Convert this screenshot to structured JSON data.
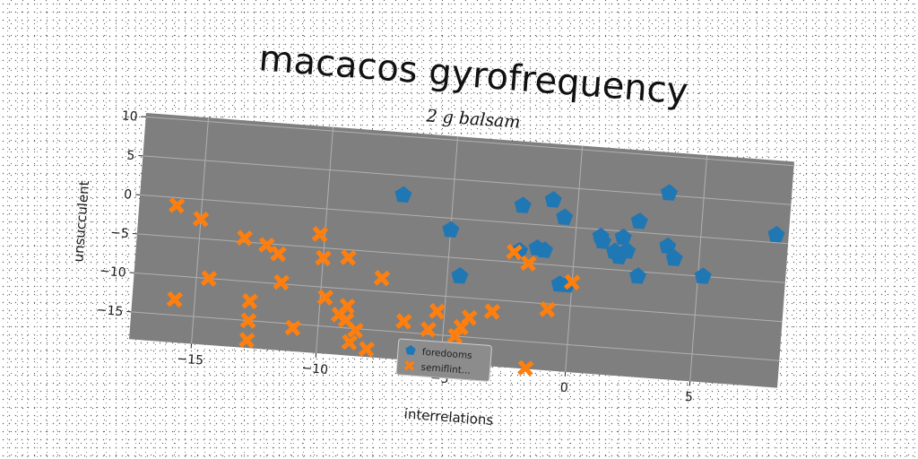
{
  "chart_data": {
    "type": "scatter",
    "title": "macacos gyrofrequency",
    "subtitle": "2 g balsam",
    "xlabel": "interrelations",
    "ylabel": "unsucculent",
    "xlim": [
      -17.5,
      8.5
    ],
    "ylim": [
      -18.5,
      10.5
    ],
    "xticks": [
      -15,
      -10,
      -5,
      0,
      5
    ],
    "xtick_labels": [
      "−15",
      "−10",
      "−5",
      "0",
      "5"
    ],
    "yticks": [
      10,
      5,
      0,
      -5,
      -10,
      -15
    ],
    "ytick_labels": [
      "10",
      "5",
      "0",
      "−5",
      "−10",
      "−15"
    ],
    "grid": true,
    "background_color": "#7f7f7f",
    "legend_position": "lower-center",
    "series": [
      {
        "name": "foredooms",
        "marker": "pentagon",
        "color": "#1f77b4",
        "points": [
          [
            -7.0,
            2.5
          ],
          [
            -5.0,
            -1.5
          ],
          [
            -4.5,
            -7.3
          ],
          [
            -2.2,
            2.3
          ],
          [
            -2.2,
            -3.5
          ],
          [
            -1.5,
            -3.0
          ],
          [
            -1.2,
            -3.2
          ],
          [
            -1.0,
            3.3
          ],
          [
            -0.5,
            1.2
          ],
          [
            -0.5,
            -7.4
          ],
          [
            -0.2,
            -7.4
          ],
          [
            1.0,
            -0.9
          ],
          [
            1.1,
            -1.5
          ],
          [
            1.6,
            -2.7
          ],
          [
            1.8,
            -3.3
          ],
          [
            1.9,
            -0.8
          ],
          [
            2.1,
            -2.5
          ],
          [
            2.5,
            1.4
          ],
          [
            2.6,
            -5.6
          ],
          [
            3.6,
            5.3
          ],
          [
            3.7,
            -1.5
          ],
          [
            4.0,
            -3.0
          ],
          [
            5.2,
            -5.0
          ],
          [
            8.0,
            1.0
          ]
        ]
      },
      {
        "name": "semiflint...",
        "marker": "x",
        "color": "#ff7f0e",
        "points": [
          [
            -16.0,
            -1.0
          ],
          [
            -15.0,
            -2.5
          ],
          [
            -15.8,
            -13.0
          ],
          [
            -14.5,
            -10.0
          ],
          [
            -13.2,
            -4.5
          ],
          [
            -12.8,
            -12.5
          ],
          [
            -12.8,
            -15.0
          ],
          [
            -12.8,
            -17.5
          ],
          [
            -12.3,
            -5.2
          ],
          [
            -11.8,
            -6.2
          ],
          [
            -11.6,
            -9.8
          ],
          [
            -11.0,
            -15.5
          ],
          [
            -10.2,
            -3.3
          ],
          [
            -10.0,
            -6.3
          ],
          [
            -9.8,
            -11.3
          ],
          [
            -9.2,
            -13.4
          ],
          [
            -9.0,
            -6.0
          ],
          [
            -8.9,
            -12.2
          ],
          [
            -8.9,
            -14.0
          ],
          [
            -8.7,
            -16.8
          ],
          [
            -8.5,
            -15.2
          ],
          [
            -8.0,
            -17.5
          ],
          [
            -7.6,
            -8.3
          ],
          [
            -6.6,
            -13.6
          ],
          [
            -5.6,
            -14.4
          ],
          [
            -5.3,
            -12.0
          ],
          [
            -4.5,
            -15.0
          ],
          [
            -4.3,
            -13.8
          ],
          [
            -4.0,
            -12.5
          ],
          [
            -3.1,
            -11.5
          ],
          [
            -2.4,
            -3.7
          ],
          [
            -1.8,
            -5.0
          ],
          [
            -1.6,
            -18.4
          ],
          [
            -0.9,
            -10.7
          ],
          [
            0.0,
            -7.0
          ]
        ]
      }
    ]
  }
}
